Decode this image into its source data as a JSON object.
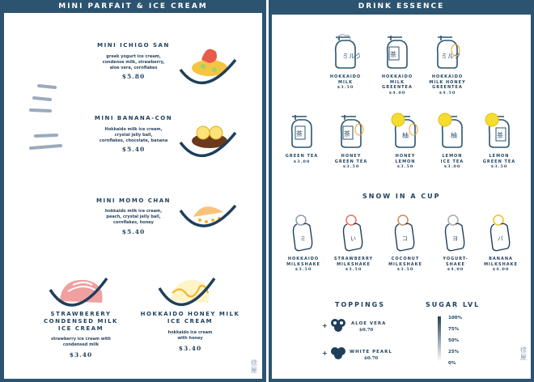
{
  "left": {
    "title": "MINI PARFAIT & ICE CREAM",
    "items": [
      {
        "name": "MINI ICHIGO SAN",
        "desc": "greek yogurt ice cream,\ncondense milk, strawberry,\naloe vera, cornflakes",
        "price": "$5.80",
        "icon": "strawberry-parfait"
      },
      {
        "name": "MINI BANANA-CON",
        "desc": "Hokkaido milk ice cream,\ncrystal jelly ball,\ncornflakes, chocolate, banana",
        "price": "$5.40",
        "icon": "banana-parfait"
      },
      {
        "name": "MINI MOMO CHAN",
        "desc": "hokkaido milk ice cream,\npeach, crystal jelly ball,\ncornflakes, honey",
        "price": "$5.40",
        "icon": "peach-parfait"
      },
      {
        "name": "STRAWBERERY\nCONDENSED MILK\nICE CREAM",
        "desc": "strawberry ice cream with\ncondensed milk",
        "price": "$3.40",
        "icon": "strawberry-ice-cream"
      },
      {
        "name": "HOKKAIDO HONEY MILK\nICE CREAM",
        "desc": "hokkaido ice cream\nwith honey",
        "price": "$3.40",
        "icon": "honey-ice-cream"
      }
    ],
    "logo": "徐屋"
  },
  "right": {
    "title": "DRINK ESSENCE",
    "drinks": [
      {
        "name": "HOKKAIDO\nMILK",
        "price": "$3.50",
        "icon": "milk-jar"
      },
      {
        "name": "HOKKAIDO\nMILK\nGREENTEA",
        "price": "$4.00",
        "icon": "milk-tea-jar"
      },
      {
        "name": "HOKKAIDO\nMILK HONEY\nGREENTEA",
        "price": "$4.50",
        "icon": "milk-honey-jar"
      },
      {
        "name": "GREEN TEA",
        "price": "$3.00",
        "icon": "tea-jar"
      },
      {
        "name": "HONEY\nGREEN TEA",
        "price": "$3.50",
        "icon": "honey-tea-jar"
      },
      {
        "name": "HONEY\nLEMON",
        "price": "$3.50",
        "icon": "honey-lemon-jar"
      },
      {
        "name": "LEMON\nICE TEA",
        "price": "$3.00",
        "icon": "lemon-jar"
      },
      {
        "name": "LEMON\nGREEN TEA",
        "price": "$3.50",
        "icon": "lemon-tea-jar"
      }
    ],
    "snow_title": "SNOW IN A CUP",
    "snow": [
      {
        "name": "HOKKAIDO\nMILKSHAKE",
        "price": "$3.50",
        "glyph": "ミルク",
        "accent": "#8a9bb0"
      },
      {
        "name": "STRAWBERRY\nMILKSHAKE",
        "price": "$3.50",
        "glyph": "いちご",
        "accent": "#e8735a"
      },
      {
        "name": "COCONUT\nMILKSHAKE",
        "price": "$3.50",
        "glyph": "ココナッツ",
        "accent": "#c98a5a"
      },
      {
        "name": "YOGURT-\nSHAKE",
        "price": "$4.00",
        "glyph": "ヨーグルト",
        "accent": "#aaaaaa"
      },
      {
        "name": "BANANA\nMILKSHAKE",
        "price": "$4.00",
        "glyph": "バナナ",
        "accent": "#f2c21b"
      }
    ],
    "toppings_title": "TOPPINGS",
    "toppings": [
      {
        "name": "ALOE VERA",
        "price": "$0.70"
      },
      {
        "name": "WHITE PEARL",
        "price": "$0.70"
      }
    ],
    "sugar_title": "SUGAR LVL",
    "sugar_levels": [
      "100%",
      "75%",
      "50%",
      "25%",
      "0%"
    ],
    "logo": "徐屋"
  },
  "colors": {
    "primary": "#2c5470",
    "orange": "#f0a030",
    "lemon": "#f5dd30",
    "pink": "#f0a0a0"
  }
}
